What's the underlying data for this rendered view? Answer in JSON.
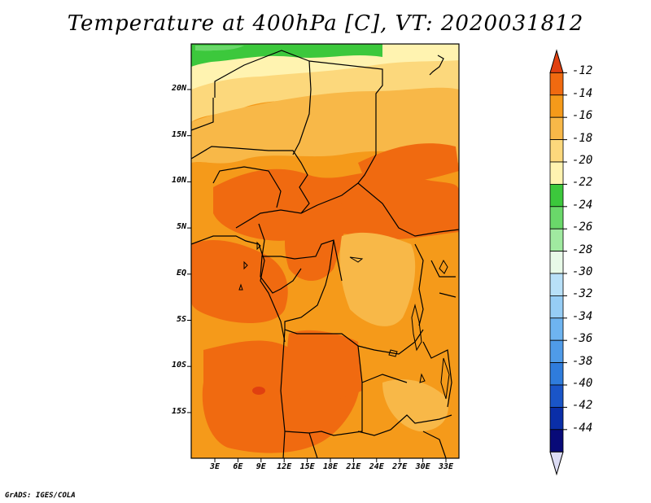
{
  "title": "Temperature at 400hPa [C], VT: 2020031812",
  "footer": "GrADS: IGES/COLA",
  "map": {
    "lat_labels": [
      "20N",
      "15N",
      "10N",
      "5N",
      "EQ",
      "5S",
      "10S",
      "15S"
    ],
    "lon_labels": [
      "3E",
      "6E",
      "9E",
      "12E",
      "15E",
      "18E",
      "21E",
      "24E",
      "27E",
      "30E",
      "33E"
    ]
  },
  "colorbar": {
    "labels": [
      "-12",
      "-14",
      "-16",
      "-18",
      "-20",
      "-22",
      "-24",
      "-26",
      "-28",
      "-30",
      "-32",
      "-34",
      "-36",
      "-38",
      "-40",
      "-42",
      "-44"
    ],
    "colors": [
      "#e04010",
      "#f06a10",
      "#f59a1a",
      "#f8b848",
      "#fcd87c",
      "#fff3b0",
      "#3cc83c",
      "#6ad86a",
      "#a0eaa0",
      "#e8fae8",
      "#b8e0f8",
      "#96cdf5",
      "#6eb4f0",
      "#4f9be8",
      "#2f7cdc",
      "#1a55c8",
      "#0a2ea8",
      "#080a78",
      "#dcdcf4"
    ]
  },
  "field_colors": {
    "warmest": "#f06a10",
    "warm": "#f59a1a",
    "mid": "#f8b848",
    "cool": "#fcd87c",
    "cooler": "#fff3b0",
    "cold_band": "#3cc83c",
    "cold_band_light": "#6ad86a",
    "warm_spot": "#e04010"
  }
}
